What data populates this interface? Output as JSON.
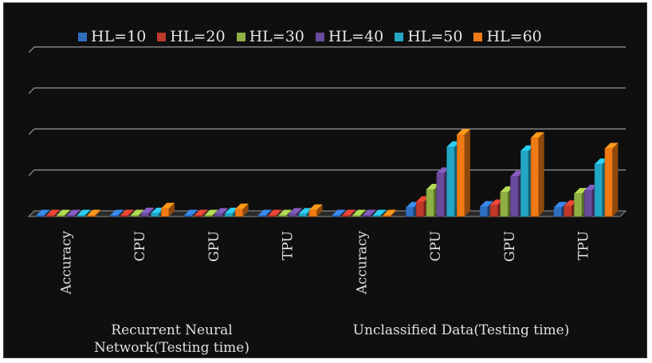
{
  "chart_data": {
    "type": "bar",
    "style": "3d-clustered-column",
    "title": "",
    "xlabel": "",
    "ylabel": "",
    "ylim": [
      0,
      200
    ],
    "grid": true,
    "legend_position": "top",
    "groups": [
      {
        "label": "Recurrent Neural Network(Testing time)",
        "categories": [
          "Accuracy",
          "CPU",
          "GPU",
          "TPU"
        ]
      },
      {
        "label": "Unclassified Data(Testing time)",
        "categories": [
          "Accuracy",
          "CPU",
          "GPU",
          "TPU"
        ]
      }
    ],
    "categories": [
      "Accuracy",
      "CPU",
      "GPU",
      "TPU",
      "Accuracy",
      "CPU",
      "GPU",
      "TPU"
    ],
    "series": [
      {
        "name": "HL=10",
        "color": "#2e6fc0",
        "values": [
          0.5,
          0.5,
          0.5,
          0.5,
          0.5,
          11,
          12,
          11
        ]
      },
      {
        "name": "HL=20",
        "color": "#c0392b",
        "values": [
          0.5,
          0.5,
          0.5,
          0.5,
          0.5,
          18,
          14,
          13
        ]
      },
      {
        "name": "HL=30",
        "color": "#8fb043",
        "values": [
          0.5,
          0.5,
          0.5,
          0.5,
          0.5,
          33,
          30,
          28
        ]
      },
      {
        "name": "HL=40",
        "color": "#6a4a9c",
        "values": [
          0.5,
          4,
          3.5,
          3.5,
          0.5,
          53,
          49,
          32
        ]
      },
      {
        "name": "HL=50",
        "color": "#23a6c4",
        "values": [
          0.5,
          4,
          4,
          3.5,
          0.5,
          85,
          80,
          64
        ]
      },
      {
        "name": "HL=60",
        "color": "#f07a14",
        "values": [
          0.5,
          10,
          9,
          8,
          0.5,
          100,
          96,
          83
        ]
      }
    ]
  }
}
